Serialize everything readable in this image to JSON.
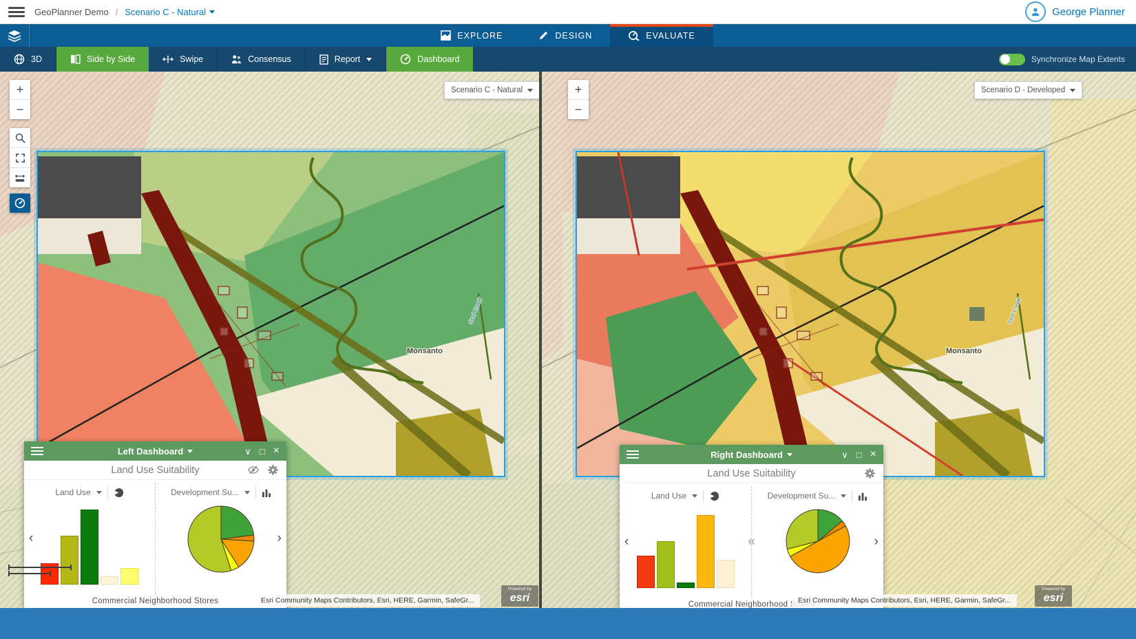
{
  "header": {
    "app_title": "GeoPlanner Demo",
    "separator": "/",
    "scenario_label": "Scenario C - Natural",
    "user_name": "George Planner"
  },
  "nav_tabs": {
    "explore": "EXPLORE",
    "design": "DESIGN",
    "evaluate": "EVALUATE"
  },
  "toolbar": {
    "btn_3d": "3D",
    "btn_side_by_side": "Side by Side",
    "btn_swipe": "Swipe",
    "btn_consensus": "Consensus",
    "btn_report": "Report",
    "btn_dashboard": "Dashboard",
    "sync_label": "Synchronize Map Extents"
  },
  "map_controls": {
    "zoom_in": "+",
    "zoom_out": "−"
  },
  "left_map": {
    "scenario_selector": "Scenario C - Natural",
    "monsanto_label": "Monsanto",
    "creek_label": "Seal Creek",
    "attribution": "Esri Community Maps Contributors, Esri, HERE, Garmin, SafeGr...",
    "logo_pre": "Powered by",
    "logo": "esri"
  },
  "right_map": {
    "scenario_selector": "Scenario D - Developed",
    "monsanto_label": "Monsanto",
    "creek_label": "Seal Creek",
    "attribution": "Esri Community Maps Contributors, Esri, HERE, Garmin, SafeGr...",
    "logo_pre": "Powered by",
    "logo": "esri"
  },
  "left_dashboard": {
    "title": "Left Dashboard",
    "subtitle": "Land Use Suitability",
    "widget1_label": "Land Use",
    "widget2_label": "Development Su...",
    "caption": "Commercial Neighborhood Stores",
    "prev": "‹",
    "next": "›",
    "collapse_down": "∨",
    "maximize": "□",
    "close": "×"
  },
  "right_dashboard": {
    "title": "Right Dashboard",
    "subtitle": "Land Use Suitability",
    "widget1_label": "Land Use",
    "widget2_label": "Development Su...",
    "caption": "Commercial Neighborhood Stores",
    "prev": "‹",
    "next": "›",
    "collapse_handle": "«",
    "collapse_down": "∨",
    "maximize": "□",
    "close": "×"
  },
  "chart_data": [
    {
      "id": "left-bar",
      "type": "bar",
      "widget": "Land Use",
      "scenario": "Scenario C - Natural",
      "values": [
        28,
        63,
        97,
        11,
        21
      ],
      "unit": "relative-height-percent",
      "colors": [
        "#fe2900",
        "#b2b717",
        "#0a7c0a",
        "#fdf5d7",
        "#fcfc70"
      ],
      "borders": [
        "#c42000",
        "#8f940e",
        "#075c07",
        "#ece0b4",
        "#e8e83c"
      ],
      "ylim": [
        0,
        100
      ]
    },
    {
      "id": "left-pie",
      "type": "pie",
      "widget": "Development Su...",
      "scenario": "Scenario C - Natural",
      "slices": [
        {
          "value": 23,
          "color": "#3ea339"
        },
        {
          "value": 3,
          "color": "#ef8800"
        },
        {
          "value": 15,
          "color": "#fba400"
        },
        {
          "value": 4,
          "color": "#f8f808"
        },
        {
          "value": 55,
          "color": "#b4ca28"
        }
      ]
    },
    {
      "id": "right-bar",
      "type": "bar",
      "widget": "Land Use",
      "scenario": "Scenario D - Developed",
      "values": [
        42,
        61,
        7,
        95,
        37
      ],
      "unit": "relative-height-percent",
      "colors": [
        "#f33b10",
        "#a3bf1c",
        "#0a7c0a",
        "#fcb810",
        "#fdf3d2"
      ],
      "borders": [
        "#c42000",
        "#7fa00e",
        "#075c07",
        "#d89a05",
        "#eee0b0"
      ],
      "ylim": [
        0,
        100
      ]
    },
    {
      "id": "right-pie",
      "type": "pie",
      "widget": "Development Su...",
      "scenario": "Scenario D - Developed",
      "slices": [
        {
          "value": 14,
          "color": "#3ea339"
        },
        {
          "value": 3,
          "color": "#ef8800"
        },
        {
          "value": 50,
          "color": "#fba400"
        },
        {
          "value": 4,
          "color": "#f8f808"
        },
        {
          "value": 29,
          "color": "#b4ca28"
        }
      ]
    }
  ],
  "colors": {
    "accent_blue": "#0079c1",
    "nav_blue": "#0b5d94",
    "toolbar_blue": "#17496f",
    "active_tab_blue": "#0a4c7d",
    "tab_accent_orange": "#e2491a",
    "button_green": "#58a93d",
    "panel_green": "#5c9a60",
    "toggle_green": "#6abf4b",
    "footer_blue": "#2d7ab8"
  }
}
